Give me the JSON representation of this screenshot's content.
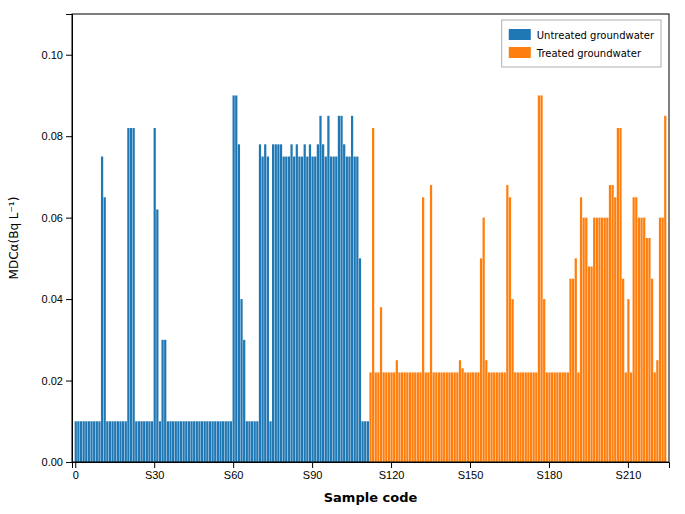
{
  "chart_data": {
    "type": "bar",
    "xlabel": "Sample code",
    "ylabel": "MDCα(Bq L⁻¹)",
    "ylim": [
      0,
      0.11
    ],
    "yticks": [
      {
        "value": 0.0,
        "label": "0.00"
      },
      {
        "value": 0.02,
        "label": "0.02"
      },
      {
        "value": 0.04,
        "label": "0.04"
      },
      {
        "value": 0.06,
        "label": "0.06"
      },
      {
        "value": 0.08,
        "label": "0.08"
      },
      {
        "value": 0.1,
        "label": "0.10"
      }
    ],
    "grid": false,
    "legend": "upper right",
    "categories": [
      "0",
      null,
      null,
      null,
      null,
      null,
      null,
      null,
      null,
      null,
      null,
      null,
      null,
      null,
      null,
      null,
      null,
      null,
      null,
      null,
      null,
      null,
      null,
      null,
      null,
      null,
      null,
      null,
      null,
      null,
      "S30",
      null,
      null,
      null,
      null,
      null,
      null,
      null,
      null,
      null,
      null,
      null,
      null,
      null,
      null,
      null,
      null,
      null,
      null,
      null,
      null,
      null,
      null,
      null,
      null,
      null,
      null,
      null,
      null,
      null,
      "S60",
      null,
      null,
      null,
      null,
      null,
      null,
      null,
      null,
      null,
      null,
      null,
      null,
      null,
      null,
      null,
      null,
      null,
      null,
      null,
      null,
      null,
      null,
      null,
      null,
      null,
      null,
      null,
      null,
      null,
      "S90",
      null,
      null,
      null,
      null,
      null,
      null,
      null,
      null,
      null,
      null,
      null,
      null,
      null,
      null,
      null,
      null,
      null,
      null,
      null,
      null,
      null,
      null,
      null,
      null,
      null,
      null,
      null,
      null,
      null,
      "S120",
      null,
      null,
      null,
      null,
      null,
      null,
      null,
      null,
      null,
      null,
      null,
      null,
      null,
      null,
      null,
      null,
      null,
      null,
      null,
      null,
      null,
      null,
      null,
      null,
      null,
      null,
      null,
      null,
      null,
      "S150",
      null,
      null,
      null,
      null,
      null,
      null,
      null,
      null,
      null,
      null,
      null,
      null,
      null,
      null,
      null,
      null,
      null,
      null,
      null,
      null,
      null,
      null,
      null,
      null,
      null,
      null,
      null,
      null,
      null,
      "S180",
      null,
      null,
      null,
      null,
      null,
      null,
      null,
      null,
      null,
      null,
      null,
      null,
      null,
      null,
      null,
      null,
      null,
      null,
      null,
      null,
      null,
      null,
      null,
      null,
      null,
      null,
      null,
      null,
      null,
      "S210",
      null,
      null,
      null,
      null,
      null,
      null,
      null,
      null,
      null,
      null,
      null,
      null,
      null,
      null
    ],
    "series": [
      {
        "name": "Untreated groundwater",
        "values": [
          0.01,
          0.01,
          0.01,
          0.01,
          0.01,
          0.01,
          0.01,
          0.01,
          0.01,
          0.01,
          0.075,
          0.065,
          0.01,
          0.01,
          0.01,
          0.01,
          0.01,
          0.01,
          0.01,
          0.01,
          0.082,
          0.082,
          0.082,
          0.01,
          0.01,
          0.01,
          0.01,
          0.01,
          0.01,
          0.01,
          0.082,
          0.062,
          0.01,
          0.03,
          0.03,
          0.01,
          0.01,
          0.01,
          0.01,
          0.01,
          0.01,
          0.01,
          0.01,
          0.01,
          0.01,
          0.01,
          0.01,
          0.01,
          0.01,
          0.01,
          0.01,
          0.01,
          0.01,
          0.01,
          0.01,
          0.01,
          0.01,
          0.01,
          0.01,
          0.01,
          0.09,
          0.09,
          0.078,
          0.04,
          0.03,
          0.01,
          0.01,
          0.01,
          0.01,
          0.01,
          0.078,
          0.075,
          0.078,
          0.075,
          0.01,
          0.078,
          0.078,
          0.078,
          0.078,
          0.075,
          0.075,
          0.075,
          0.078,
          0.075,
          0.078,
          0.075,
          0.075,
          0.078,
          0.075,
          0.078,
          0.075,
          0.075,
          0.078,
          0.085,
          0.078,
          0.075,
          0.085,
          0.075,
          0.075,
          0.075,
          0.085,
          0.085,
          0.078,
          0.075,
          0.075,
          0.085,
          0.075,
          0.075,
          0.05,
          0.01,
          0.01,
          0.01,
          null,
          null,
          null,
          null,
          null,
          null,
          null,
          null,
          null,
          null,
          null,
          null,
          null,
          null,
          null,
          null,
          null,
          null,
          null,
          null,
          null,
          null,
          null,
          null,
          null,
          null,
          null,
          null,
          null,
          null,
          null,
          null,
          null,
          null,
          null,
          null,
          null,
          null,
          null,
          null,
          null,
          null,
          null,
          null,
          null,
          null,
          null,
          null,
          null,
          null,
          null,
          null,
          null,
          null,
          null,
          null,
          null,
          null,
          null,
          null,
          null,
          null,
          null,
          null,
          null,
          null,
          null,
          null,
          null,
          null,
          null,
          null,
          null,
          null,
          null,
          null,
          null,
          null,
          null,
          null,
          null,
          null,
          null,
          null,
          null,
          null,
          null,
          null,
          null,
          null,
          null,
          null,
          null,
          null,
          null,
          null,
          null,
          null,
          null,
          null,
          null,
          null,
          null,
          null,
          null,
          null,
          null,
          null,
          null,
          null,
          null,
          null,
          null
        ]
      },
      {
        "name": "Treated groundwater",
        "values": [
          null,
          null,
          null,
          null,
          null,
          null,
          null,
          null,
          null,
          null,
          null,
          null,
          null,
          null,
          null,
          null,
          null,
          null,
          null,
          null,
          null,
          null,
          null,
          null,
          null,
          null,
          null,
          null,
          null,
          null,
          null,
          null,
          null,
          null,
          null,
          null,
          null,
          null,
          null,
          null,
          null,
          null,
          null,
          null,
          null,
          null,
          null,
          null,
          null,
          null,
          null,
          null,
          null,
          null,
          null,
          null,
          null,
          null,
          null,
          null,
          null,
          null,
          null,
          null,
          null,
          null,
          null,
          null,
          null,
          null,
          null,
          null,
          null,
          null,
          null,
          null,
          null,
          null,
          null,
          null,
          null,
          null,
          null,
          null,
          null,
          null,
          null,
          null,
          null,
          null,
          null,
          null,
          null,
          null,
          null,
          null,
          null,
          null,
          null,
          null,
          null,
          null,
          null,
          null,
          null,
          null,
          null,
          null,
          null,
          null,
          null,
          null,
          0.022,
          0.082,
          0.022,
          0.022,
          0.038,
          0.022,
          0.022,
          0.022,
          0.022,
          0.022,
          0.025,
          0.022,
          0.022,
          0.022,
          0.022,
          0.022,
          0.022,
          0.022,
          0.022,
          0.022,
          0.065,
          0.022,
          0.022,
          0.068,
          0.022,
          0.022,
          0.022,
          0.022,
          0.022,
          0.022,
          0.022,
          0.022,
          0.022,
          0.022,
          0.025,
          0.023,
          0.022,
          0.022,
          0.022,
          0.022,
          0.022,
          0.022,
          0.05,
          0.06,
          0.025,
          0.022,
          0.022,
          0.022,
          0.022,
          0.022,
          0.022,
          0.022,
          0.068,
          0.065,
          0.04,
          0.022,
          0.022,
          0.022,
          0.022,
          0.022,
          0.022,
          0.022,
          0.022,
          0.022,
          0.09,
          0.09,
          0.04,
          0.022,
          0.022,
          0.022,
          0.022,
          0.022,
          0.022,
          0.022,
          0.022,
          0.022,
          0.045,
          0.045,
          0.05,
          0.022,
          0.065,
          0.06,
          0.06,
          0.048,
          0.048,
          0.06,
          0.06,
          0.06,
          0.06,
          0.06,
          0.06,
          0.068,
          0.068,
          0.065,
          0.082,
          0.082,
          0.045,
          0.022,
          0.04,
          0.022,
          0.065,
          0.065,
          0.06,
          0.06,
          0.06,
          0.055,
          0.055,
          0.045,
          0.022,
          0.025,
          0.06,
          0.06,
          0.085
        ]
      }
    ]
  }
}
